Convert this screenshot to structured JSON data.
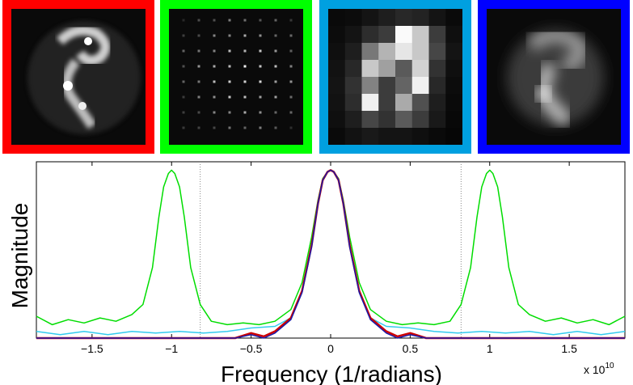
{
  "panels": [
    {
      "name": "panel-red",
      "border_color": "#ff0000",
      "content": "galaxy-image"
    },
    {
      "name": "panel-green",
      "border_color": "#00ff00",
      "content": "sampled-grid"
    },
    {
      "name": "panel-cyan",
      "border_color": "#00a0e0",
      "content": "pixelated-image"
    },
    {
      "name": "panel-blue",
      "border_color": "#0000ff",
      "content": "blurred-image"
    }
  ],
  "chart_data": {
    "type": "line",
    "title": "",
    "xlabel": "Frequency (1/radians)",
    "ylabel": "Magnitude",
    "x_multiplier": "x 10",
    "x_multiplier_exp": "10",
    "xlim": [
      -1.85,
      1.85
    ],
    "ylim": [
      0,
      1.05
    ],
    "xticks": [
      -1.5,
      -1,
      -0.5,
      0,
      0.5,
      1,
      1.5
    ],
    "xtick_labels": [
      "−1.5",
      "−1",
      "−0.5",
      "0",
      "0.5",
      "1",
      "1.5"
    ],
    "vlines": [
      -0.82,
      0.82
    ],
    "series": [
      {
        "name": "green",
        "color": "#00dd00",
        "x": [
          -1.85,
          -1.75,
          -1.65,
          -1.55,
          -1.45,
          -1.35,
          -1.25,
          -1.18,
          -1.12,
          -1.08,
          -1.05,
          -1.02,
          -1.0,
          -0.98,
          -0.95,
          -0.92,
          -0.88,
          -0.82,
          -0.75,
          -0.65,
          -0.55,
          -0.45,
          -0.35,
          -0.25,
          -0.18,
          -0.12,
          -0.08,
          -0.05,
          -0.02,
          0.0,
          0.02,
          0.05,
          0.08,
          0.12,
          0.18,
          0.25,
          0.35,
          0.45,
          0.55,
          0.65,
          0.75,
          0.82,
          0.88,
          0.92,
          0.95,
          0.98,
          1.0,
          1.02,
          1.05,
          1.08,
          1.12,
          1.18,
          1.25,
          1.35,
          1.45,
          1.55,
          1.65,
          1.75,
          1.85
        ],
        "y": [
          0.13,
          0.08,
          0.11,
          0.09,
          0.12,
          0.1,
          0.14,
          0.2,
          0.42,
          0.72,
          0.9,
          0.98,
          1.0,
          0.98,
          0.9,
          0.72,
          0.42,
          0.2,
          0.1,
          0.08,
          0.09,
          0.08,
          0.1,
          0.17,
          0.33,
          0.6,
          0.82,
          0.95,
          0.99,
          1.0,
          0.99,
          0.95,
          0.82,
          0.6,
          0.33,
          0.17,
          0.1,
          0.08,
          0.09,
          0.08,
          0.1,
          0.2,
          0.42,
          0.72,
          0.9,
          0.98,
          1.0,
          0.98,
          0.9,
          0.72,
          0.42,
          0.2,
          0.14,
          0.1,
          0.12,
          0.09,
          0.11,
          0.08,
          0.13
        ]
      },
      {
        "name": "cyan",
        "color": "#33ccee",
        "x": [
          -1.85,
          -1.7,
          -1.55,
          -1.4,
          -1.25,
          -1.1,
          -0.95,
          -0.8,
          -0.65,
          -0.5,
          -0.35,
          -0.25,
          -0.18,
          -0.12,
          -0.08,
          -0.05,
          -0.02,
          0.0,
          0.02,
          0.05,
          0.08,
          0.12,
          0.18,
          0.25,
          0.35,
          0.5,
          0.65,
          0.8,
          0.95,
          1.1,
          1.25,
          1.4,
          1.55,
          1.7,
          1.85
        ],
        "y": [
          0.04,
          0.02,
          0.04,
          0.02,
          0.04,
          0.03,
          0.04,
          0.03,
          0.04,
          0.06,
          0.07,
          0.12,
          0.28,
          0.55,
          0.8,
          0.94,
          0.99,
          1.0,
          0.99,
          0.94,
          0.8,
          0.55,
          0.28,
          0.12,
          0.07,
          0.06,
          0.04,
          0.03,
          0.04,
          0.03,
          0.04,
          0.02,
          0.04,
          0.02,
          0.04
        ]
      },
      {
        "name": "red",
        "color": "#cc0000",
        "x": [
          -1.85,
          -0.6,
          -0.5,
          -0.42,
          -0.35,
          -0.25,
          -0.18,
          -0.12,
          -0.08,
          -0.05,
          -0.02,
          0.0,
          0.02,
          0.05,
          0.08,
          0.12,
          0.18,
          0.25,
          0.35,
          0.42,
          0.5,
          0.6,
          1.85
        ],
        "y": [
          0.0,
          0.0,
          0.03,
          0.01,
          0.04,
          0.12,
          0.28,
          0.55,
          0.8,
          0.94,
          0.99,
          1.0,
          0.99,
          0.94,
          0.8,
          0.55,
          0.28,
          0.12,
          0.04,
          0.01,
          0.03,
          0.0,
          0.0
        ]
      },
      {
        "name": "blue",
        "color": "#1a1aaa",
        "x": [
          -1.85,
          -0.6,
          -0.5,
          -0.42,
          -0.35,
          -0.25,
          -0.18,
          -0.12,
          -0.08,
          -0.05,
          -0.02,
          0.0,
          0.02,
          0.05,
          0.08,
          0.12,
          0.18,
          0.25,
          0.35,
          0.42,
          0.5,
          0.6,
          1.85
        ],
        "y": [
          0.0,
          0.0,
          0.02,
          0.0,
          0.03,
          0.11,
          0.27,
          0.54,
          0.8,
          0.94,
          0.99,
          1.0,
          0.99,
          0.94,
          0.8,
          0.54,
          0.27,
          0.11,
          0.03,
          0.0,
          0.02,
          0.0,
          0.0
        ]
      }
    ]
  }
}
